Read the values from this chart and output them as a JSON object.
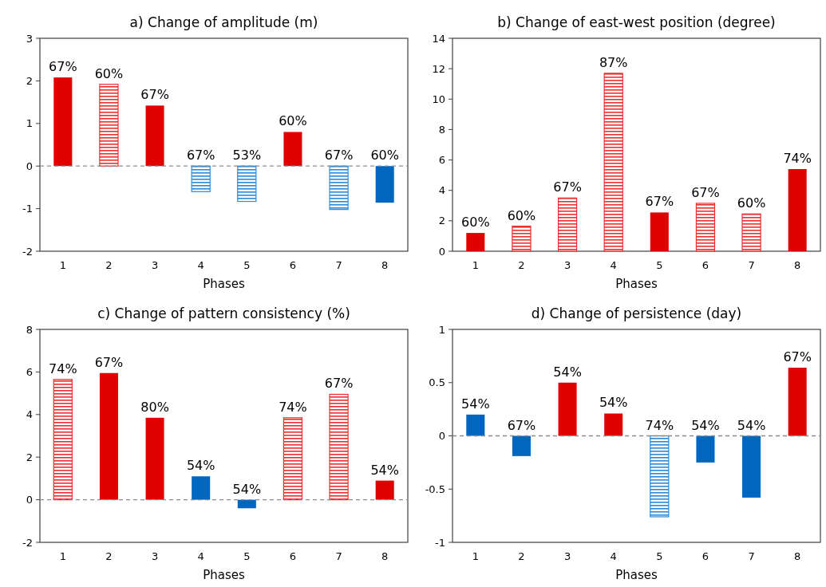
{
  "chart_data": [
    {
      "type": "bar",
      "title": "a) Change of amplitude (m)",
      "xlabel": "Phases",
      "categories": [
        "1",
        "2",
        "3",
        "4",
        "5",
        "6",
        "7",
        "8"
      ],
      "stacked": true,
      "series": [
        {
          "colors": [
            "#e00000",
            null,
            "#e00000",
            null,
            null,
            "#e00000",
            null,
            "#0066c0"
          ],
          "values": [
            2.08,
            null,
            1.42,
            null,
            null,
            0.8,
            null,
            -0.86
          ]
        },
        {
          "colors": [
            null,
            "#e83030",
            null,
            "#2a8ad8",
            "#2a8ad8",
            null,
            "#2a8ad8",
            null
          ],
          "values": [
            null,
            1.92,
            null,
            -0.6,
            -0.83,
            null,
            -1.02,
            null
          ]
        }
      ],
      "value_labels": [
        "67%",
        "60%",
        "67%",
        "67%",
        "53%",
        "60%",
        "67%",
        "60%"
      ],
      "ylim": [
        -2,
        3
      ],
      "yticks": [
        -2,
        -1,
        0,
        1,
        2,
        3
      ],
      "ref_lines": [
        {
          "axis": "y",
          "value": 0,
          "color": "#8c8c8c",
          "line_style": "dashed"
        }
      ]
    },
    {
      "type": "bar",
      "title": "b) Change of east-west position (degree)",
      "xlabel": "Phases",
      "categories": [
        "1",
        "2",
        "3",
        "4",
        "5",
        "6",
        "7",
        "8"
      ],
      "stacked": true,
      "series": [
        {
          "colors": [
            "#e00000",
            null,
            null,
            null,
            "#e00000",
            null,
            null,
            "#e00000"
          ],
          "values": [
            1.2,
            null,
            null,
            null,
            2.55,
            null,
            null,
            5.4
          ]
        },
        {
          "colors": [
            null,
            "#e83030",
            "#e83030",
            "#e83030",
            null,
            "#e83030",
            "#e83030",
            null
          ],
          "values": [
            null,
            1.65,
            3.5,
            11.7,
            null,
            3.15,
            2.45,
            null
          ]
        }
      ],
      "value_labels": [
        "60%",
        "60%",
        "67%",
        "87%",
        "67%",
        "67%",
        "60%",
        "74%"
      ],
      "ylim": [
        0,
        14
      ],
      "yticks": [
        0,
        2,
        4,
        6,
        8,
        10,
        12,
        14
      ]
    },
    {
      "type": "bar",
      "title": "c) Change of pattern consistency (%)",
      "xlabel": "Phases",
      "categories": [
        "1",
        "2",
        "3",
        "4",
        "5",
        "6",
        "7",
        "8"
      ],
      "stacked": true,
      "series": [
        {
          "colors": [
            null,
            "#e00000",
            "#e00000",
            "#0066c0",
            "#0066c0",
            null,
            null,
            "#e00000"
          ],
          "values": [
            null,
            5.95,
            3.85,
            1.1,
            -0.4,
            null,
            null,
            0.9
          ]
        },
        {
          "colors": [
            "#e83030",
            null,
            null,
            null,
            null,
            "#e83030",
            "#e83030",
            null
          ],
          "values": [
            5.65,
            null,
            null,
            null,
            null,
            3.85,
            4.95,
            null
          ]
        }
      ],
      "value_labels": [
        "74%",
        "67%",
        "80%",
        "54%",
        "54%",
        "74%",
        "67%",
        "54%"
      ],
      "ylim": [
        -2,
        8
      ],
      "yticks": [
        -2,
        0,
        2,
        4,
        6,
        8
      ],
      "ref_lines": [
        {
          "axis": "y",
          "value": 0,
          "color": "#8c8c8c",
          "line_style": "dashed"
        }
      ]
    },
    {
      "type": "bar",
      "title": "d) Change of persistence (day)",
      "xlabel": "Phases",
      "categories": [
        "1",
        "2",
        "3",
        "4",
        "5",
        "6",
        "7",
        "8"
      ],
      "stacked": true,
      "series": [
        {
          "colors": [
            "#0066c0",
            "#0066c0",
            "#e00000",
            "#e00000",
            null,
            "#0066c0",
            "#0066c0",
            "#e00000"
          ],
          "values": [
            0.2,
            -0.19,
            0.5,
            0.21,
            null,
            -0.25,
            -0.58,
            0.64
          ]
        },
        {
          "colors": [
            null,
            null,
            null,
            null,
            "#2a8ad8",
            null,
            null,
            null
          ],
          "values": [
            null,
            null,
            null,
            null,
            -0.76,
            null,
            null,
            null
          ]
        }
      ],
      "value_labels": [
        "54%",
        "67%",
        "54%",
        "54%",
        "74%",
        "54%",
        "54%",
        "67%"
      ],
      "ylim": [
        -1,
        1
      ],
      "yticks": [
        -1,
        -0.5,
        0,
        0.5,
        1
      ],
      "ref_lines": [
        {
          "axis": "y",
          "value": 0,
          "color": "#8c8c8c",
          "line_style": "dashed"
        }
      ]
    }
  ]
}
